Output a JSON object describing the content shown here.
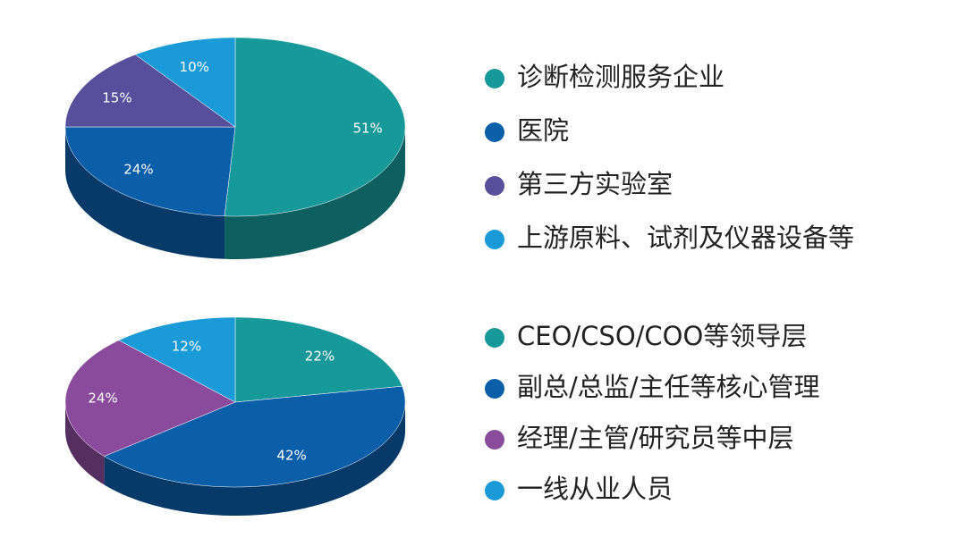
{
  "chart_data": [
    {
      "type": "pie",
      "categories": [
        "诊断检测服务企业",
        "医院",
        "第三方实验室",
        "上游原料、试剂及仪器设备等"
      ],
      "values": [
        51,
        24,
        15,
        10
      ],
      "value_labels": [
        "51%",
        "24%",
        "15%",
        "10%"
      ],
      "colors": [
        "#17999a",
        "#0b5ea8",
        "#574f9b",
        "#1a9bd7"
      ]
    },
    {
      "type": "pie",
      "categories": [
        "CEO/CSO/COO等领导层",
        "副总/总监/主任等核心管理",
        "经理/主管/研究员等中层",
        "一线从业人员"
      ],
      "values": [
        22,
        42,
        24,
        12
      ],
      "value_labels": [
        "22%",
        "42%",
        "24%",
        "12%"
      ],
      "colors": [
        "#17999a",
        "#0b5ea8",
        "#8b4b9c",
        "#1a9bd7"
      ]
    }
  ]
}
